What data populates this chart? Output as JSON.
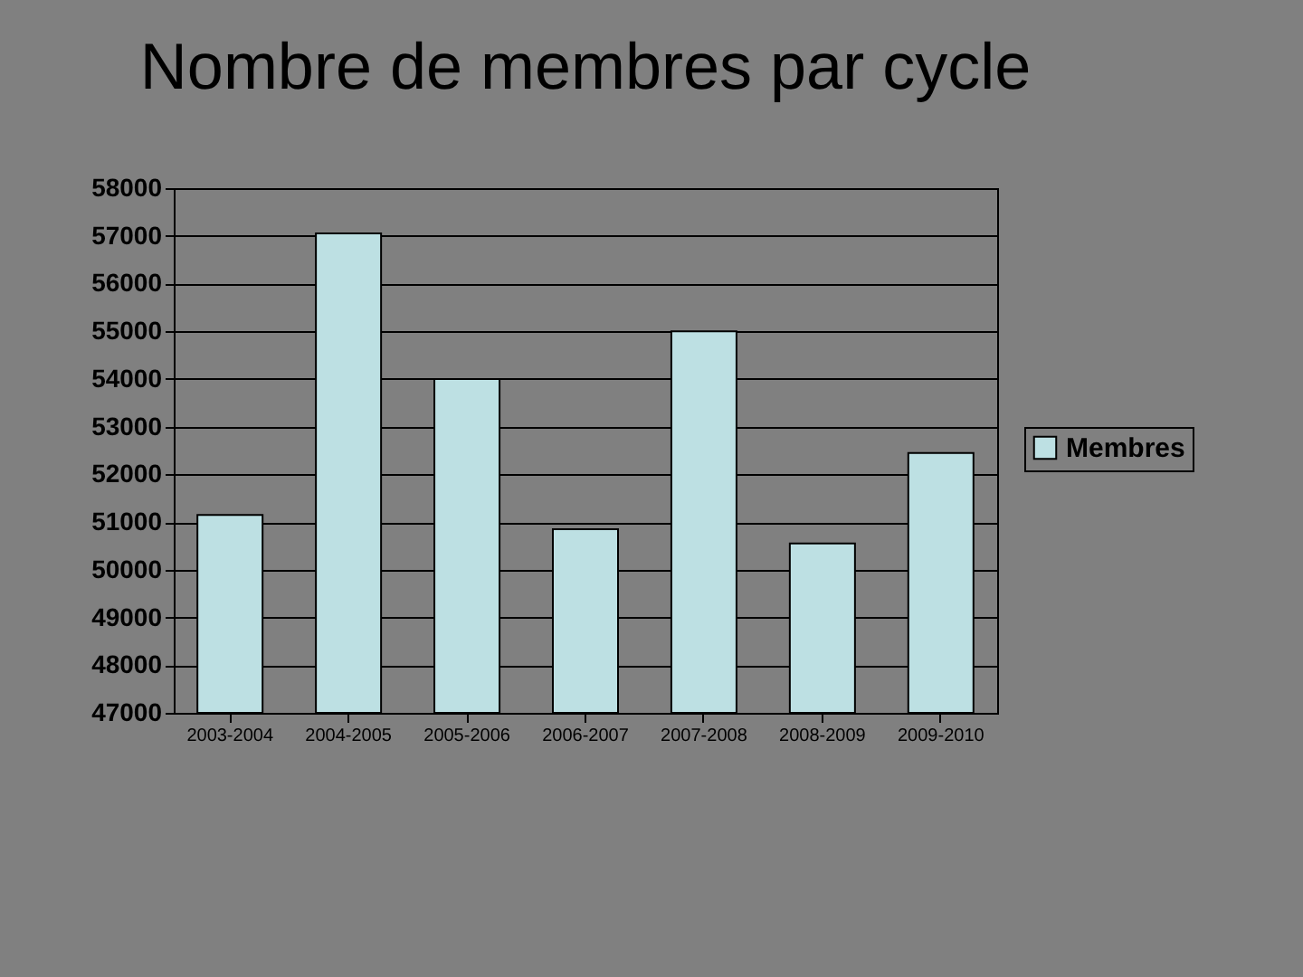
{
  "chart_data": {
    "type": "bar",
    "title": "Nombre de membres par cycle",
    "categories": [
      "2003-2004",
      "2004-2005",
      "2005-2006",
      "2006-2007",
      "2007-2008",
      "2008-2009",
      "2009-2010"
    ],
    "series": [
      {
        "name": "Membres",
        "color": "#bde0e3",
        "values": [
          51150,
          57050,
          54000,
          50850,
          55000,
          50550,
          52450
        ]
      }
    ],
    "ylim": [
      47000,
      58000
    ],
    "yticks": [
      47000,
      48000,
      49000,
      50000,
      51000,
      52000,
      53000,
      54000,
      55000,
      56000,
      57000,
      58000
    ],
    "grid": "y",
    "legend": "right"
  }
}
